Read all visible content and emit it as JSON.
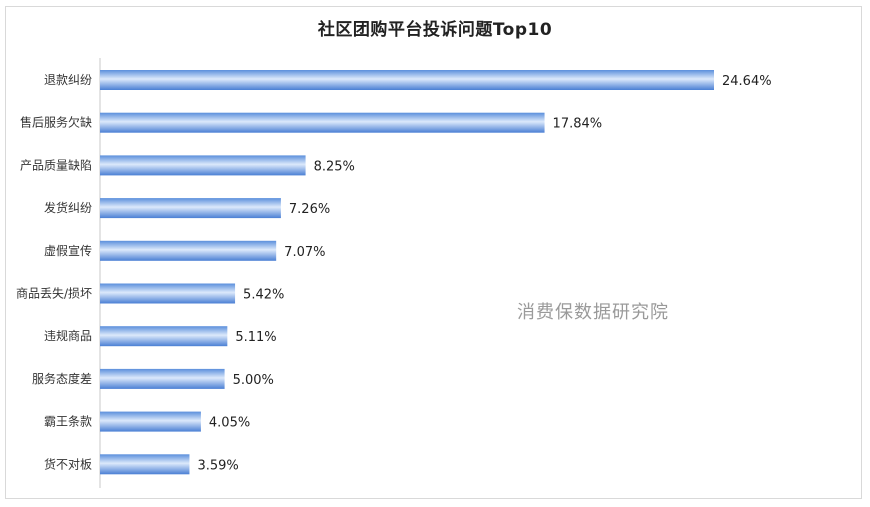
{
  "chart_data": {
    "type": "bar",
    "orientation": "horizontal",
    "title": "社区团购平台投诉问题Top10",
    "categories": [
      "退款纠纷",
      "售后服务欠缺",
      "产品质量缺陷",
      "发货纠纷",
      "虚假宣传",
      "商品丢失/损坏",
      "违规商品",
      "服务态度差",
      "霸王条款",
      "货不对板"
    ],
    "values": [
      24.64,
      17.84,
      8.25,
      7.26,
      7.07,
      5.42,
      5.11,
      5.0,
      4.05,
      3.59
    ],
    "value_labels": [
      "24.64%",
      "17.84%",
      "8.25%",
      "7.26%",
      "7.07%",
      "5.42%",
      "5.11%",
      "5.00%",
      "4.05%",
      "3.59%"
    ],
    "unit": "%",
    "xlim": [
      0,
      24.64
    ],
    "grid": false,
    "legend": "none",
    "bar_color_top": "#5b8fdc",
    "bar_color_mid": "#dce9fb",
    "bar_color_bottom": "#4a7fd4"
  },
  "watermark": "消费保数据研究院"
}
